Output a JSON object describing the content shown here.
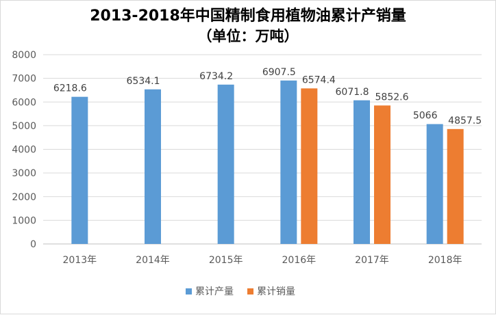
{
  "chart_data": {
    "type": "bar",
    "title": "2013-2018年中国精制食用植物油累计产销量",
    "subtitle": "（单位：万吨）",
    "categories": [
      "2013年",
      "2014年",
      "2015年",
      "2016年",
      "2017年",
      "2018年"
    ],
    "series": [
      {
        "name": "累计产量",
        "values": [
          6218.6,
          6534.1,
          6734.2,
          6907.5,
          6071.8,
          5066
        ],
        "labels": [
          "6218.6",
          "6534.1",
          "6734.2",
          "6907.5",
          "6071.8",
          "5066"
        ]
      },
      {
        "name": "累计销量",
        "values": [
          null,
          null,
          null,
          6574.4,
          5852.6,
          4857.5
        ],
        "labels": [
          "",
          "",
          "",
          "6574.4",
          "5852.6",
          "4857.5"
        ]
      }
    ],
    "ylim": [
      0,
      8000
    ],
    "yticks": [
      "0",
      "1000",
      "2000",
      "3000",
      "4000",
      "5000",
      "6000",
      "7000",
      "8000"
    ],
    "ytick_values": [
      0,
      1000,
      2000,
      3000,
      4000,
      5000,
      6000,
      7000,
      8000
    ],
    "xlabel": "",
    "ylabel": "",
    "grid": true,
    "legend": "bottom",
    "colors": {
      "series1": "#5b9bd5",
      "series2": "#ed7d31",
      "grid": "#d9d9d9",
      "axis": "#bfbfbf"
    }
  }
}
